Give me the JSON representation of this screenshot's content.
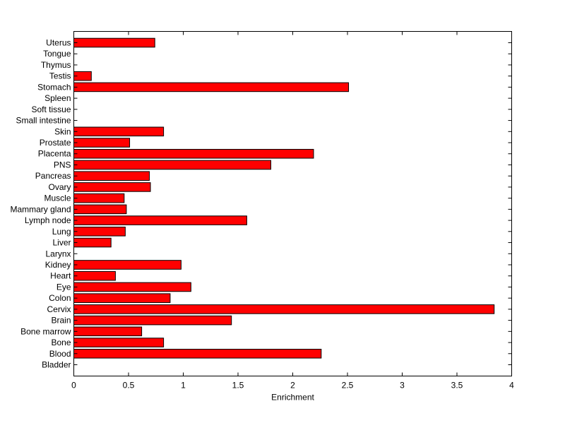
{
  "chart_data": {
    "type": "bar",
    "orientation": "horizontal",
    "title": "",
    "xlabel": "Enrichment",
    "ylabel": "",
    "xlim": [
      0,
      4
    ],
    "x_ticks": [
      "0",
      "0.5",
      "1",
      "1.5",
      "2",
      "2.5",
      "3",
      "3.5",
      "4"
    ],
    "bar_color": "#ff0000",
    "bar_edge_color": "#000000",
    "grid": false,
    "categories": [
      "Bladder",
      "Blood",
      "Bone",
      "Bone marrow",
      "Brain",
      "Cervix",
      "Colon",
      "Eye",
      "Heart",
      "Kidney",
      "Larynx",
      "Liver",
      "Lung",
      "Lymph node",
      "Mammary gland",
      "Muscle",
      "Ovary",
      "Pancreas",
      "PNS",
      "Placenta",
      "Prostate",
      "Skin",
      "Small intestine",
      "Soft tissue",
      "Spleen",
      "Stomach",
      "Testis",
      "Thymus",
      "Tongue",
      "Uterus"
    ],
    "values": [
      0,
      2.26,
      0.82,
      0.62,
      1.44,
      3.84,
      0.88,
      1.07,
      0.38,
      0.98,
      0,
      0.34,
      0.47,
      1.58,
      0.48,
      0.46,
      0.7,
      0.69,
      1.8,
      2.19,
      0.51,
      0.82,
      0,
      0,
      0,
      2.51,
      0.16,
      0,
      0,
      0.74
    ]
  }
}
